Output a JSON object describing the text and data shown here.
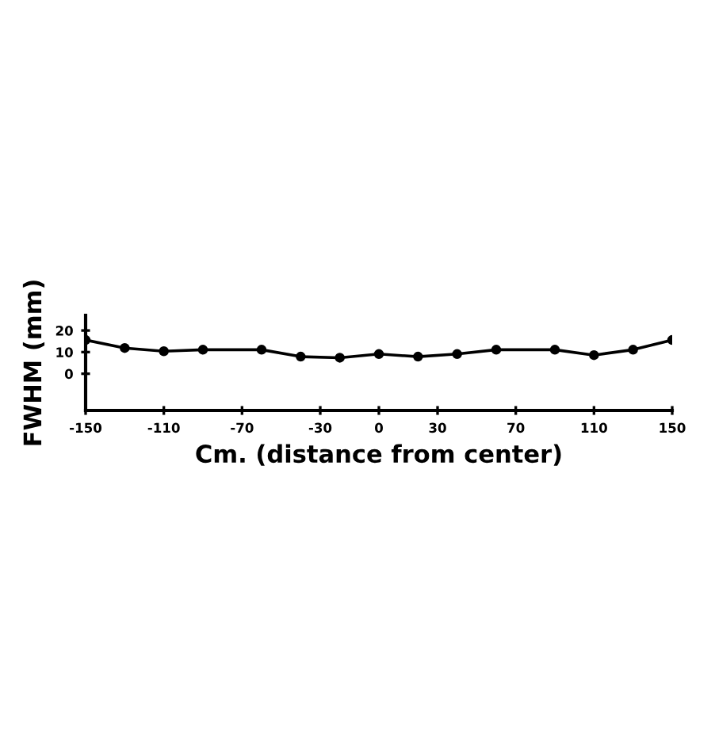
{
  "chart_data": {
    "type": "line",
    "xlabel": "Cm. (distance from center)",
    "ylabel": "FWHM (mm)",
    "x": [
      -150,
      -130,
      -110,
      -90,
      -60,
      -40,
      -20,
      0,
      20,
      40,
      60,
      90,
      110,
      130,
      150
    ],
    "series": [
      {
        "color": "#000000",
        "values": [
          15.6,
          11.9,
          10.4,
          11.1,
          11.1,
          7.9,
          7.4,
          9.1,
          7.9,
          9.1,
          11.1,
          11.1,
          8.6,
          11.1,
          15.6
        ]
      }
    ],
    "xlim": [
      -150,
      150
    ],
    "xticks": [
      -150,
      -110,
      -70,
      -30,
      0,
      30,
      70,
      110,
      150
    ],
    "ylim": [
      -17,
      27
    ],
    "yticks": [
      0,
      10,
      20
    ],
    "marker": "circle",
    "line_style": "solid",
    "grid": false,
    "legend": false
  }
}
